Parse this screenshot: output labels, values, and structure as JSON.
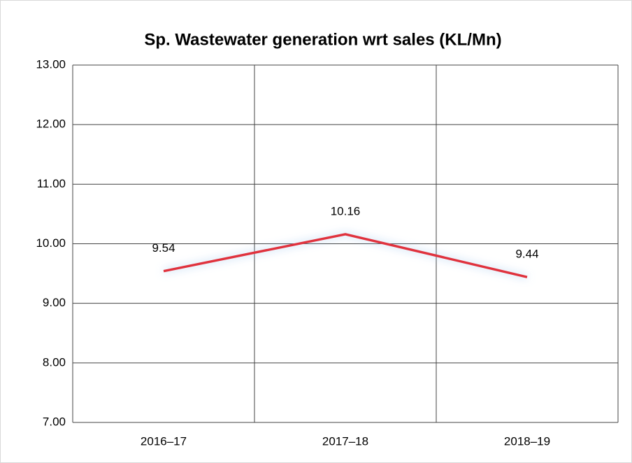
{
  "chart_data": {
    "type": "line",
    "title": "Sp. Wastewater generation wrt sales (KL/Mn)",
    "categories": [
      "2016–17",
      "2017–18",
      "2018–19"
    ],
    "series": [
      {
        "name": "Sp. Wastewater generation",
        "color": "#e0323c",
        "values": [
          9.54,
          10.16,
          9.44
        ]
      }
    ],
    "ylim": [
      7,
      13
    ],
    "yticks": [
      {
        "value": 7,
        "label": "7.00"
      },
      {
        "value": 8,
        "label": "8.00"
      },
      {
        "value": 9,
        "label": "9.00"
      },
      {
        "value": 10,
        "label": "10.00"
      },
      {
        "value": 11,
        "label": "11.00"
      },
      {
        "value": 12,
        "label": "12.00"
      },
      {
        "value": 13,
        "label": "13.00"
      }
    ],
    "grid": true
  }
}
